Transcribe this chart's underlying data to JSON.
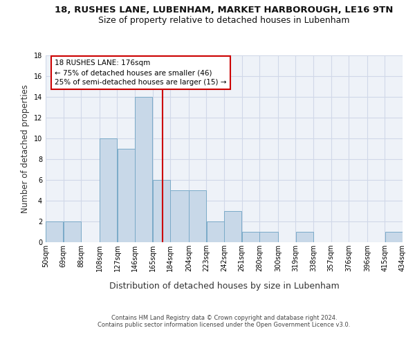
{
  "title1": "18, RUSHES LANE, LUBENHAM, MARKET HARBOROUGH, LE16 9TN",
  "title2": "Size of property relative to detached houses in Lubenham",
  "xlabel": "Distribution of detached houses by size in Lubenham",
  "ylabel": "Number of detached properties",
  "bin_edges": [
    50,
    69,
    88,
    108,
    127,
    146,
    165,
    184,
    204,
    223,
    242,
    261,
    280,
    300,
    319,
    338,
    357,
    376,
    396,
    415,
    434
  ],
  "bin_labels": [
    "50sqm",
    "69sqm",
    "88sqm",
    "108sqm",
    "127sqm",
    "146sqm",
    "165sqm",
    "184sqm",
    "204sqm",
    "223sqm",
    "242sqm",
    "261sqm",
    "280sqm",
    "300sqm",
    "319sqm",
    "338sqm",
    "357sqm",
    "376sqm",
    "396sqm",
    "415sqm",
    "434sqm"
  ],
  "counts": [
    2,
    2,
    0,
    10,
    9,
    14,
    6,
    5,
    5,
    2,
    3,
    1,
    1,
    0,
    1,
    0,
    0,
    0,
    0,
    1
  ],
  "bar_color": "#c8d8e8",
  "bar_edge_color": "#7aaac8",
  "vline_x": 176,
  "vline_color": "#cc0000",
  "annotation_line1": "18 RUSHES LANE: 176sqm",
  "annotation_line2": "← 75% of detached houses are smaller (46)",
  "annotation_line3": "25% of semi-detached houses are larger (15) →",
  "annotation_box_color": "#cc0000",
  "ylim": [
    0,
    18
  ],
  "yticks": [
    0,
    2,
    4,
    6,
    8,
    10,
    12,
    14,
    16,
    18
  ],
  "grid_color": "#d0d8e8",
  "background_color": "#eef2f8",
  "footer": "Contains HM Land Registry data © Crown copyright and database right 2024.\nContains public sector information licensed under the Open Government Licence v3.0.",
  "title1_fontsize": 9.5,
  "title2_fontsize": 9,
  "xlabel_fontsize": 9,
  "ylabel_fontsize": 8.5,
  "tick_fontsize": 7,
  "annotation_fontsize": 7.5,
  "footer_fontsize": 6
}
